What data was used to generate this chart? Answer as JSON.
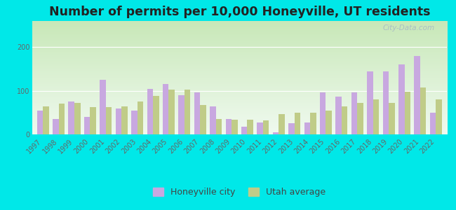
{
  "title": "Number of permits per 10,000 Honeyville, UT residents",
  "years": [
    1997,
    1998,
    1999,
    2000,
    2001,
    2002,
    2003,
    2004,
    2005,
    2006,
    2007,
    2008,
    2009,
    2010,
    2011,
    2012,
    2013,
    2014,
    2015,
    2016,
    2017,
    2018,
    2019,
    2020,
    2021,
    2022
  ],
  "honeyville": [
    55,
    35,
    75,
    40,
    125,
    60,
    55,
    105,
    115,
    90,
    97,
    65,
    35,
    18,
    28,
    5,
    25,
    27,
    97,
    87,
    97,
    145,
    145,
    160,
    180,
    50
  ],
  "utah_avg": [
    65,
    70,
    72,
    62,
    62,
    65,
    75,
    88,
    103,
    103,
    68,
    35,
    33,
    33,
    32,
    47,
    50,
    50,
    55,
    65,
    73,
    80,
    73,
    98,
    108,
    80
  ],
  "honeyville_color": "#c8a8e0",
  "utah_color": "#c0cc88",
  "bg_top": "#f0faf0",
  "bg_bottom": "#c8e8b8",
  "outer_bg": "#00e8e8",
  "ylim": [
    0,
    260
  ],
  "yticks": [
    0,
    100,
    200
  ],
  "bar_width": 0.38,
  "title_fontsize": 12.5,
  "tick_fontsize": 7,
  "legend_fontsize": 9
}
